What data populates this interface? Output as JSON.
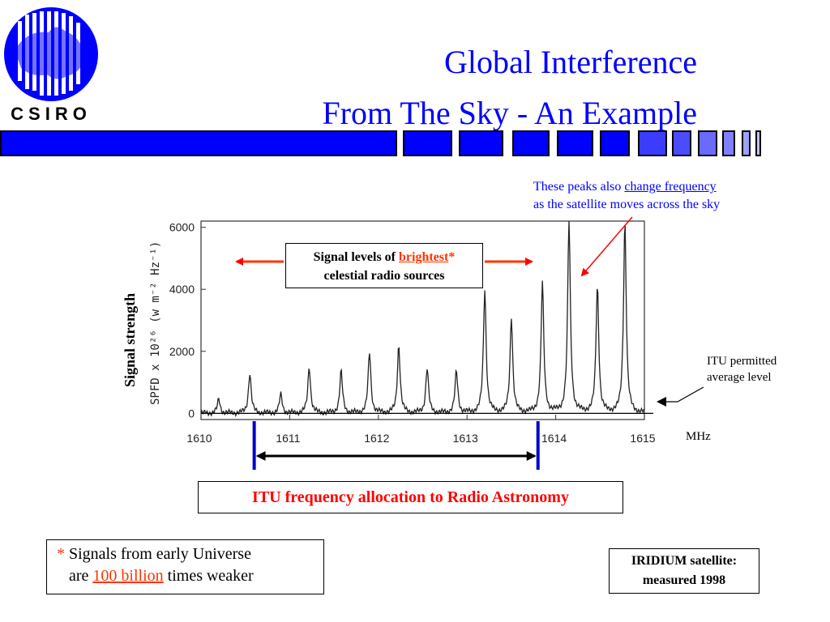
{
  "logo": {
    "text": "CSIRO"
  },
  "title": {
    "line1": "Global Interference",
    "line2": "From The Sky - An Example"
  },
  "header_bar": {
    "colors": [
      "#0000ff",
      "#5a5aff",
      "#9a9aff"
    ]
  },
  "annotations": {
    "peaks_note": {
      "text": "These peaks also",
      "link": "change frequency",
      "line2": "as the satellite moves across the sky"
    },
    "signal_levels": {
      "prefix": "Signal levels of",
      "highlight": "brightest",
      "asterisk": "*",
      "line2": "celestial radio sources"
    },
    "itu_level": {
      "line1": "ITU permitted",
      "line2": "average level"
    },
    "units": "MHz",
    "itu_allocation": "ITU frequency allocation to Radio Astronomy",
    "footnote": {
      "asterisk": "*",
      "line1": "Signals from early Universe",
      "line2_prefix": "are",
      "highlight": "100 billion",
      "line2_suffix": "times weaker"
    },
    "iridium": {
      "line1": "IRIDIUM satellite:",
      "line2": "measured 1998"
    }
  },
  "chart_data": {
    "type": "line",
    "title": "",
    "xlabel": "",
    "ylabel": "Signal strength",
    "inner_ylabel": "SPFD x 10²⁶ (w m⁻² Hz⁻¹)",
    "xlim": [
      1610,
      1615
    ],
    "ylim": [
      -200,
      6200
    ],
    "x_ticks": [
      "1610",
      "1611",
      "1612",
      "1613",
      "1614",
      "1615"
    ],
    "y_ticks": [
      "0",
      "2000",
      "4000",
      "6000"
    ],
    "itu_permitted_level": 0,
    "allocation_range": [
      1610.6,
      1613.8
    ],
    "series": [
      {
        "peaks": [
          {
            "x": 1610.2,
            "y": 450
          },
          {
            "x": 1610.55,
            "y": 1300
          },
          {
            "x": 1610.9,
            "y": 600
          },
          {
            "x": 1611.22,
            "y": 1500
          },
          {
            "x": 1611.58,
            "y": 1350
          },
          {
            "x": 1611.9,
            "y": 1950
          },
          {
            "x": 1612.23,
            "y": 2200
          },
          {
            "x": 1612.55,
            "y": 1450
          },
          {
            "x": 1612.88,
            "y": 1350
          },
          {
            "x": 1613.2,
            "y": 4000
          },
          {
            "x": 1613.5,
            "y": 3100
          },
          {
            "x": 1613.85,
            "y": 4200
          },
          {
            "x": 1614.15,
            "y": 6200
          },
          {
            "x": 1614.47,
            "y": 4100
          },
          {
            "x": 1614.78,
            "y": 6200
          }
        ],
        "baseline": 0
      }
    ]
  }
}
